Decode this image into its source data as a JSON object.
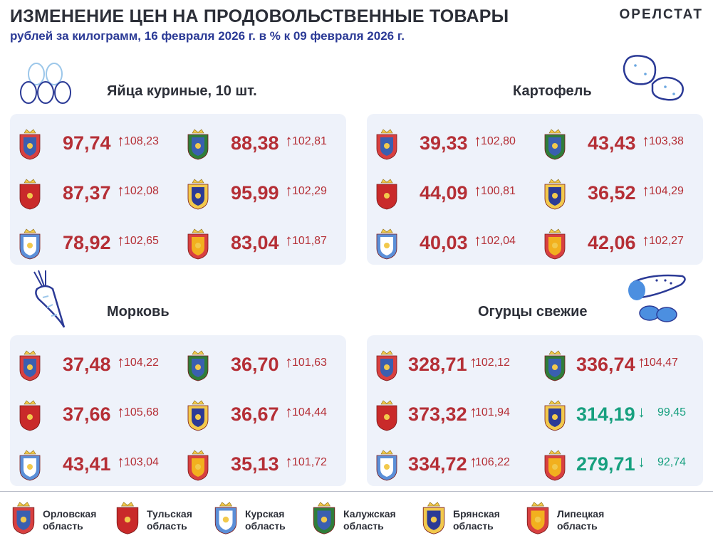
{
  "header": {
    "title": "ИЗМЕНЕНИЕ ЦЕН НА ПРОДОВОЛЬСТВЕННЫЕ ТОВАРЫ",
    "subtitle": "рублей за килограмм, 16 февраля 2026 г. в % к 09 февраля 2026 г.",
    "brand": "ОРЕЛСТАТ"
  },
  "colors": {
    "increase": "#b52f36",
    "decrease": "#17a07f",
    "subtitle": "#2b3a96",
    "panel": "#eef2fa"
  },
  "products": [
    {
      "name": "Яйца куриные, 10 шт.",
      "icon": "eggs-icon",
      "rows": [
        [
          {
            "region": "orel",
            "price": "97,74",
            "pct": "108,23",
            "trend": "up"
          },
          {
            "region": "kaluga",
            "price": "88,38",
            "pct": "102,81",
            "trend": "up"
          }
        ],
        [
          {
            "region": "tula",
            "price": "87,37",
            "pct": "102,08",
            "trend": "up"
          },
          {
            "region": "bryansk",
            "price": "95,99",
            "pct": "102,29",
            "trend": "up"
          }
        ],
        [
          {
            "region": "kursk",
            "price": "78,92",
            "pct": "102,65",
            "trend": "up"
          },
          {
            "region": "lipetsk",
            "price": "83,04",
            "pct": "101,87",
            "trend": "up"
          }
        ]
      ]
    },
    {
      "name": "Картофель",
      "icon": "potato-icon",
      "rows": [
        [
          {
            "region": "orel",
            "price": "39,33",
            "pct": "102,80",
            "trend": "up"
          },
          {
            "region": "kaluga",
            "price": "43,43",
            "pct": "103,38",
            "trend": "up"
          }
        ],
        [
          {
            "region": "tula",
            "price": "44,09",
            "pct": "100,81",
            "trend": "up"
          },
          {
            "region": "bryansk",
            "price": "36,52",
            "pct": "104,29",
            "trend": "up"
          }
        ],
        [
          {
            "region": "kursk",
            "price": "40,03",
            "pct": "102,04",
            "trend": "up"
          },
          {
            "region": "lipetsk",
            "price": "42,06",
            "pct": "102,27",
            "trend": "up"
          }
        ]
      ]
    },
    {
      "name": "Морковь",
      "icon": "carrot-icon",
      "rows": [
        [
          {
            "region": "orel",
            "price": "37,48",
            "pct": "104,22",
            "trend": "up"
          },
          {
            "region": "kaluga",
            "price": "36,70",
            "pct": "101,63",
            "trend": "up"
          }
        ],
        [
          {
            "region": "tula",
            "price": "37,66",
            "pct": "105,68",
            "trend": "up"
          },
          {
            "region": "bryansk",
            "price": "36,67",
            "pct": "104,44",
            "trend": "up"
          }
        ],
        [
          {
            "region": "kursk",
            "price": "43,41",
            "pct": "103,04",
            "trend": "up"
          },
          {
            "region": "lipetsk",
            "price": "35,13",
            "pct": "101,72",
            "trend": "up"
          }
        ]
      ]
    },
    {
      "name": "Огурцы свежие",
      "icon": "cucumber-icon",
      "rows": [
        [
          {
            "region": "orel",
            "price": "328,71",
            "pct": "102,12",
            "trend": "up"
          },
          {
            "region": "kaluga",
            "price": "336,74",
            "pct": "104,47",
            "trend": "up"
          }
        ],
        [
          {
            "region": "tula",
            "price": "373,32",
            "pct": "101,94",
            "trend": "up"
          },
          {
            "region": "bryansk",
            "price": "314,19",
            "pct": "99,45",
            "trend": "down"
          }
        ],
        [
          {
            "region": "kursk",
            "price": "334,72",
            "pct": "106,22",
            "trend": "up"
          },
          {
            "region": "lipetsk",
            "price": "279,71",
            "pct": "92,74",
            "trend": "down"
          }
        ]
      ]
    }
  ],
  "legend": [
    {
      "region": "orel",
      "line1": "Орловская",
      "line2": "область"
    },
    {
      "region": "tula",
      "line1": "Тульская",
      "line2": "область"
    },
    {
      "region": "kursk",
      "line1": "Курская",
      "line2": "область"
    },
    {
      "region": "kaluga",
      "line1": "Калужская",
      "line2": "область"
    },
    {
      "region": "bryansk",
      "line1": "Брянская",
      "line2": "область"
    },
    {
      "region": "lipetsk",
      "line1": "Липецкая",
      "line2": "область"
    }
  ],
  "arrows": {
    "up": "↑",
    "down": "↓"
  }
}
